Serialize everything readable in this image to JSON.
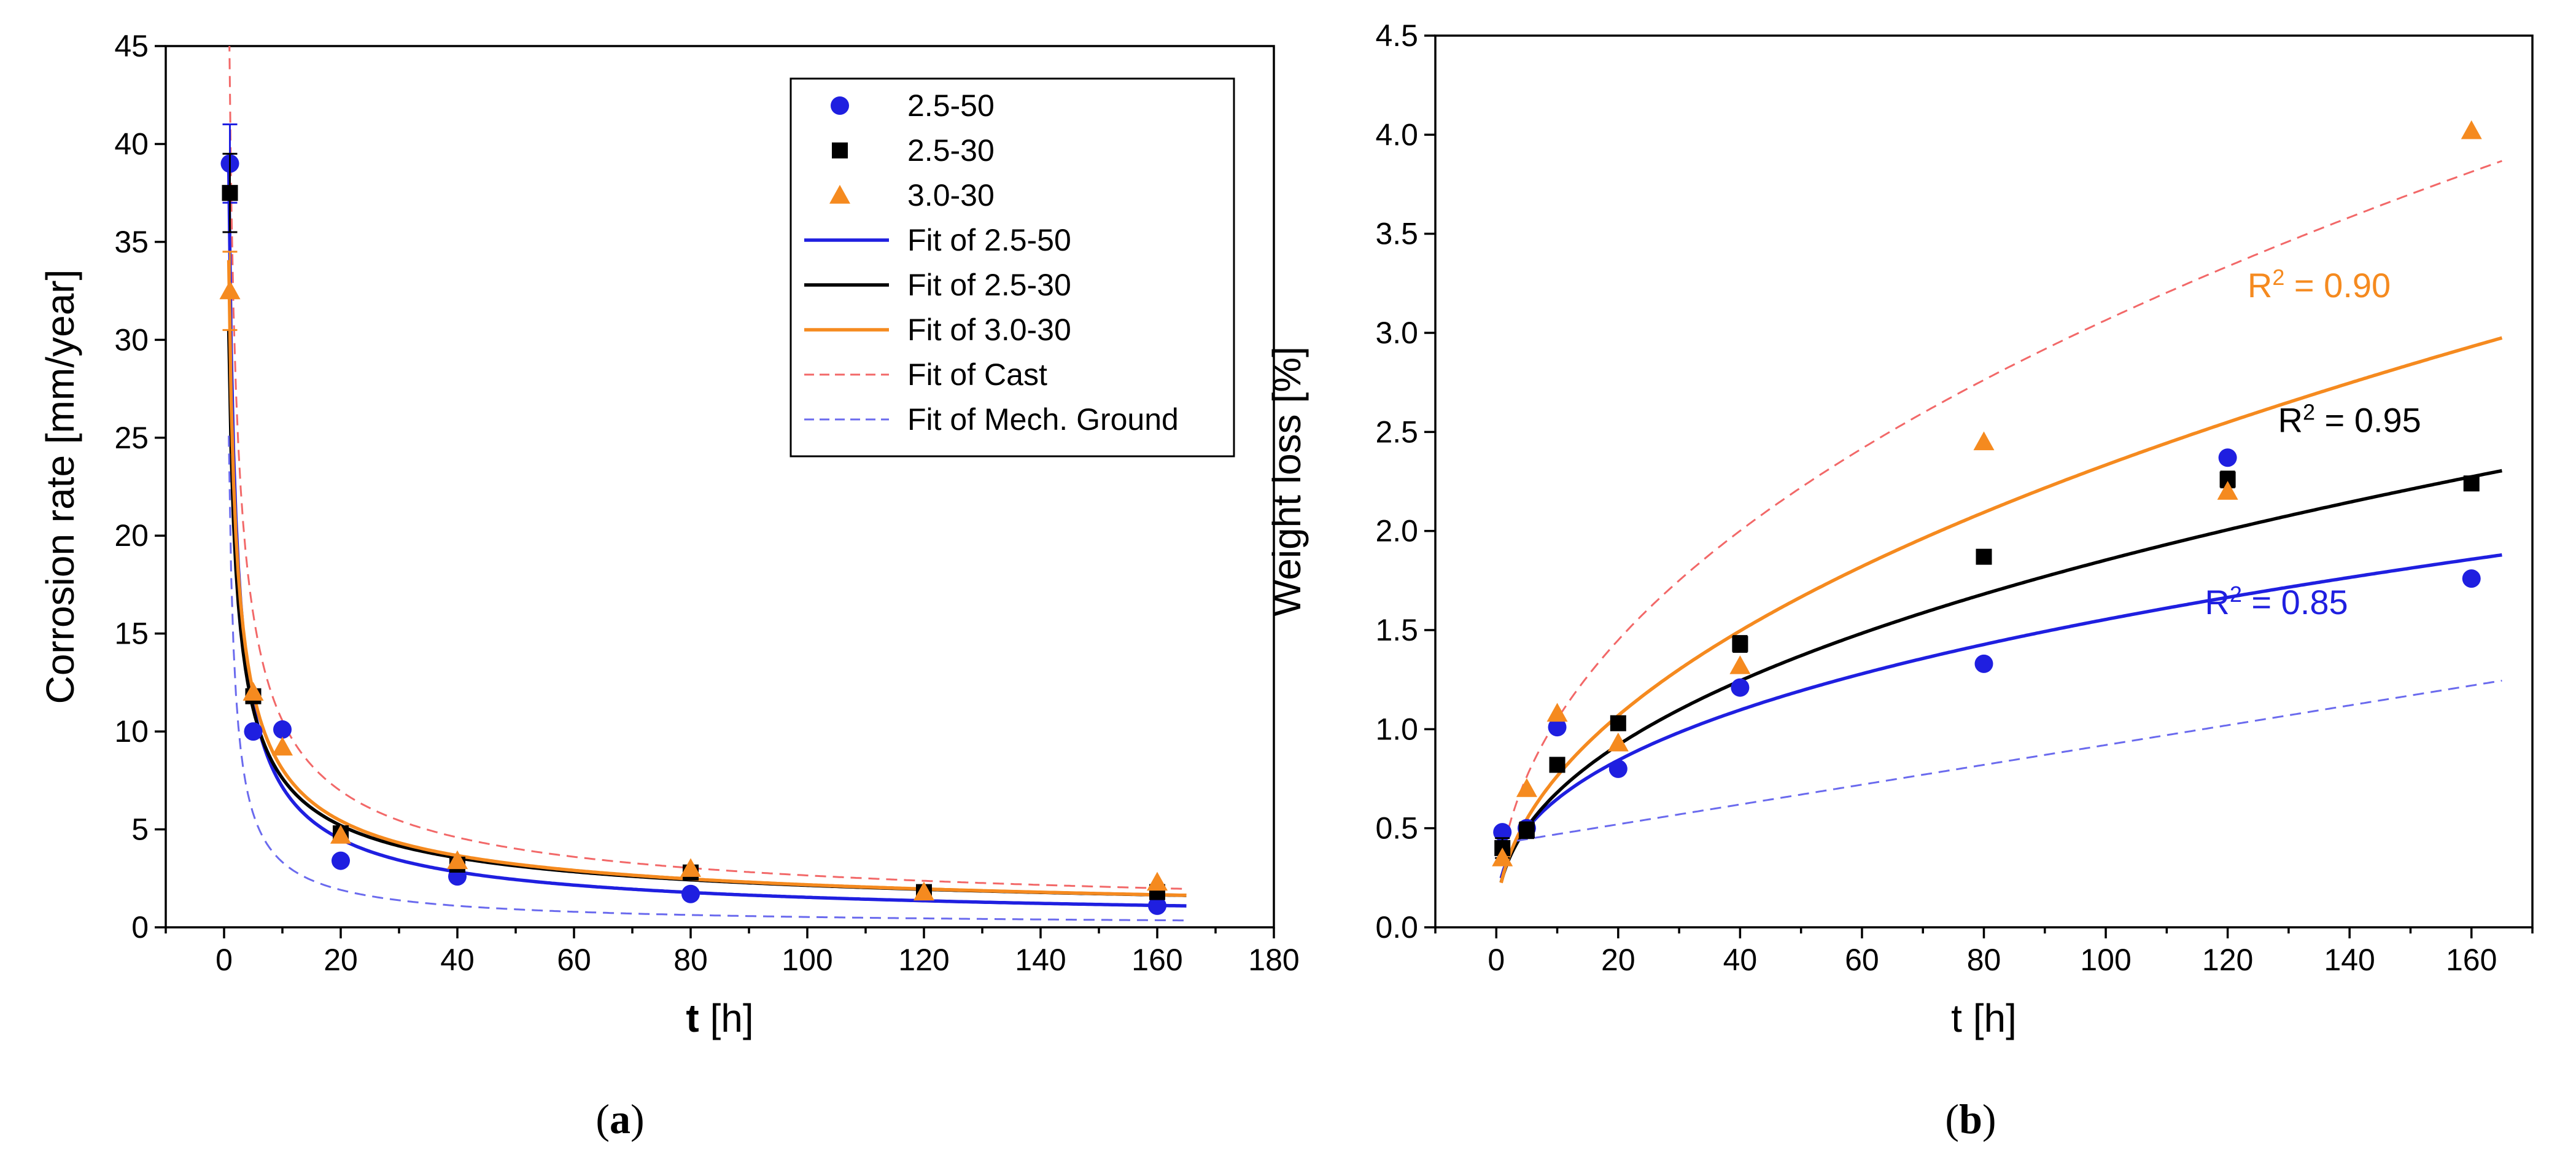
{
  "chart_data": [
    {
      "type": "scatter",
      "panel_label": "a",
      "xlabel_bold": "t",
      "xlabel_rest": " [h]",
      "ylabel": "Corrosion rate [mm/year]",
      "xlim": [
        -10,
        180
      ],
      "ylim": [
        0,
        45
      ],
      "xticks": [
        0,
        20,
        40,
        60,
        80,
        100,
        120,
        140,
        160,
        180
      ],
      "yticks": [
        0,
        5,
        10,
        15,
        20,
        25,
        30,
        35,
        40,
        45
      ],
      "legend_position": "top-right",
      "series": [
        {
          "name": "2.5-50",
          "marker": "circle",
          "color": "#1f1fe0",
          "points": [
            {
              "x": 1,
              "y": 39.0,
              "err": 2.0
            },
            {
              "x": 5,
              "y": 10.0
            },
            {
              "x": 10,
              "y": 10.1
            },
            {
              "x": 20,
              "y": 3.4
            },
            {
              "x": 40,
              "y": 2.6
            },
            {
              "x": 80,
              "y": 1.7
            },
            {
              "x": 160,
              "y": 1.1
            }
          ]
        },
        {
          "name": "2.5-30",
          "marker": "square",
          "color": "#000000",
          "points": [
            {
              "x": 1,
              "y": 37.5,
              "err": 2.0
            },
            {
              "x": 5,
              "y": 11.8
            },
            {
              "x": 20,
              "y": 4.8
            },
            {
              "x": 40,
              "y": 3.2
            },
            {
              "x": 80,
              "y": 2.8
            },
            {
              "x": 120,
              "y": 1.8
            },
            {
              "x": 160,
              "y": 1.8
            }
          ]
        },
        {
          "name": "3.0-30",
          "marker": "triangle",
          "color": "#f58a1f",
          "points": [
            {
              "x": 1,
              "y": 32.5,
              "err": 2.0
            },
            {
              "x": 5,
              "y": 12.0
            },
            {
              "x": 10,
              "y": 9.2
            },
            {
              "x": 20,
              "y": 4.7
            },
            {
              "x": 40,
              "y": 3.4
            },
            {
              "x": 80,
              "y": 3.0
            },
            {
              "x": 120,
              "y": 1.8
            },
            {
              "x": 160,
              "y": 2.3
            }
          ]
        }
      ],
      "fits": [
        {
          "name": "Fit of 2.5-50",
          "color": "#1f1fe0",
          "dashed": false,
          "model": "power",
          "a": 33.5,
          "b": -0.67
        },
        {
          "name": "Fit of 2.5-30",
          "color": "#000000",
          "dashed": false,
          "model": "power",
          "a": 27.0,
          "b": -0.55
        },
        {
          "name": "Fit of 3.0-30",
          "color": "#f58a1f",
          "dashed": false,
          "model": "power",
          "a": 30.0,
          "b": -0.57
        },
        {
          "name": "Fit of Cast",
          "color": "#f26868",
          "dashed": true,
          "model": "power",
          "a": 42.0,
          "b": -0.6
        },
        {
          "name": "Fit of Mech. Ground",
          "color": "#6a6aee",
          "dashed": true,
          "model": "power",
          "a": 21.0,
          "b": -0.8
        }
      ]
    },
    {
      "type": "scatter",
      "panel_label": "b",
      "xlabel": "t [h]",
      "ylabel": "Weight loss [%]",
      "xlim": [
        -10,
        170
      ],
      "ylim": [
        0,
        4.5
      ],
      "xticks": [
        0,
        20,
        40,
        60,
        80,
        100,
        120,
        140,
        160
      ],
      "yticks": [
        0.0,
        0.5,
        1.0,
        1.5,
        2.0,
        2.5,
        3.0,
        3.5,
        4.0,
        4.5
      ],
      "series": [
        {
          "name": "2.5-50",
          "marker": "circle",
          "color": "#1f1fe0",
          "points": [
            {
              "x": 1,
              "y": 0.48
            },
            {
              "x": 5,
              "y": 0.5
            },
            {
              "x": 10,
              "y": 1.01
            },
            {
              "x": 20,
              "y": 0.8
            },
            {
              "x": 40,
              "y": 1.21
            },
            {
              "x": 80,
              "y": 1.33
            },
            {
              "x": 120,
              "y": 2.37
            },
            {
              "x": 160,
              "y": 1.76
            }
          ]
        },
        {
          "name": "2.5-30",
          "marker": "square",
          "color": "#000000",
          "points": [
            {
              "x": 1,
              "y": 0.4,
              "err": 0.05
            },
            {
              "x": 5,
              "y": 0.49,
              "err": 0.04
            },
            {
              "x": 10,
              "y": 0.82,
              "err": 0.03
            },
            {
              "x": 20,
              "y": 1.03,
              "err": 0.03
            },
            {
              "x": 40,
              "y": 1.43,
              "err": 0.04
            },
            {
              "x": 80,
              "y": 1.87,
              "err": 0.03
            },
            {
              "x": 120,
              "y": 2.26,
              "err": 0.04
            },
            {
              "x": 160,
              "y": 2.24,
              "err": 0.03
            }
          ]
        },
        {
          "name": "3.0-30",
          "marker": "triangle",
          "color": "#f58a1f",
          "points": [
            {
              "x": 1,
              "y": 0.35
            },
            {
              "x": 5,
              "y": 0.7
            },
            {
              "x": 10,
              "y": 1.08
            },
            {
              "x": 20,
              "y": 0.93
            },
            {
              "x": 40,
              "y": 1.32
            },
            {
              "x": 80,
              "y": 2.45
            },
            {
              "x": 120,
              "y": 2.2
            },
            {
              "x": 160,
              "y": 4.02
            }
          ]
        }
      ],
      "fits": [
        {
          "name": "2.5-50",
          "color": "#1f1fe0",
          "dashed": false,
          "model": "power",
          "a": 0.27,
          "b": 0.38
        },
        {
          "name": "2.5-30",
          "color": "#000000",
          "dashed": false,
          "model": "power",
          "a": 0.25,
          "b": 0.435
        },
        {
          "name": "3.0-30",
          "color": "#f58a1f",
          "dashed": false,
          "model": "power",
          "a": 0.25,
          "b": 0.485
        },
        {
          "name": "Cast",
          "color": "#f26868",
          "dashed": true,
          "model": "power",
          "a": 0.36,
          "b": 0.465
        },
        {
          "name": "Mech. Ground",
          "color": "#6a6aee",
          "dashed": true,
          "model": "linear",
          "a": 0.42,
          "b": 0.005
        }
      ],
      "annotations": [
        {
          "name": "r2-orange",
          "prefix": "R",
          "sup": "2",
          "text": " = 0.90",
          "color": "#f58a1f",
          "at_x": 135,
          "at_y": 3.18
        },
        {
          "name": "r2-black",
          "prefix": "R",
          "sup": "2",
          "text": " = 0.95",
          "color": "#000000",
          "at_x": 140,
          "at_y": 2.5
        },
        {
          "name": "r2-blue",
          "prefix": "R",
          "sup": "2",
          "text": " = 0.85",
          "color": "#1f1fe0",
          "at_x": 128,
          "at_y": 1.58
        }
      ]
    }
  ]
}
